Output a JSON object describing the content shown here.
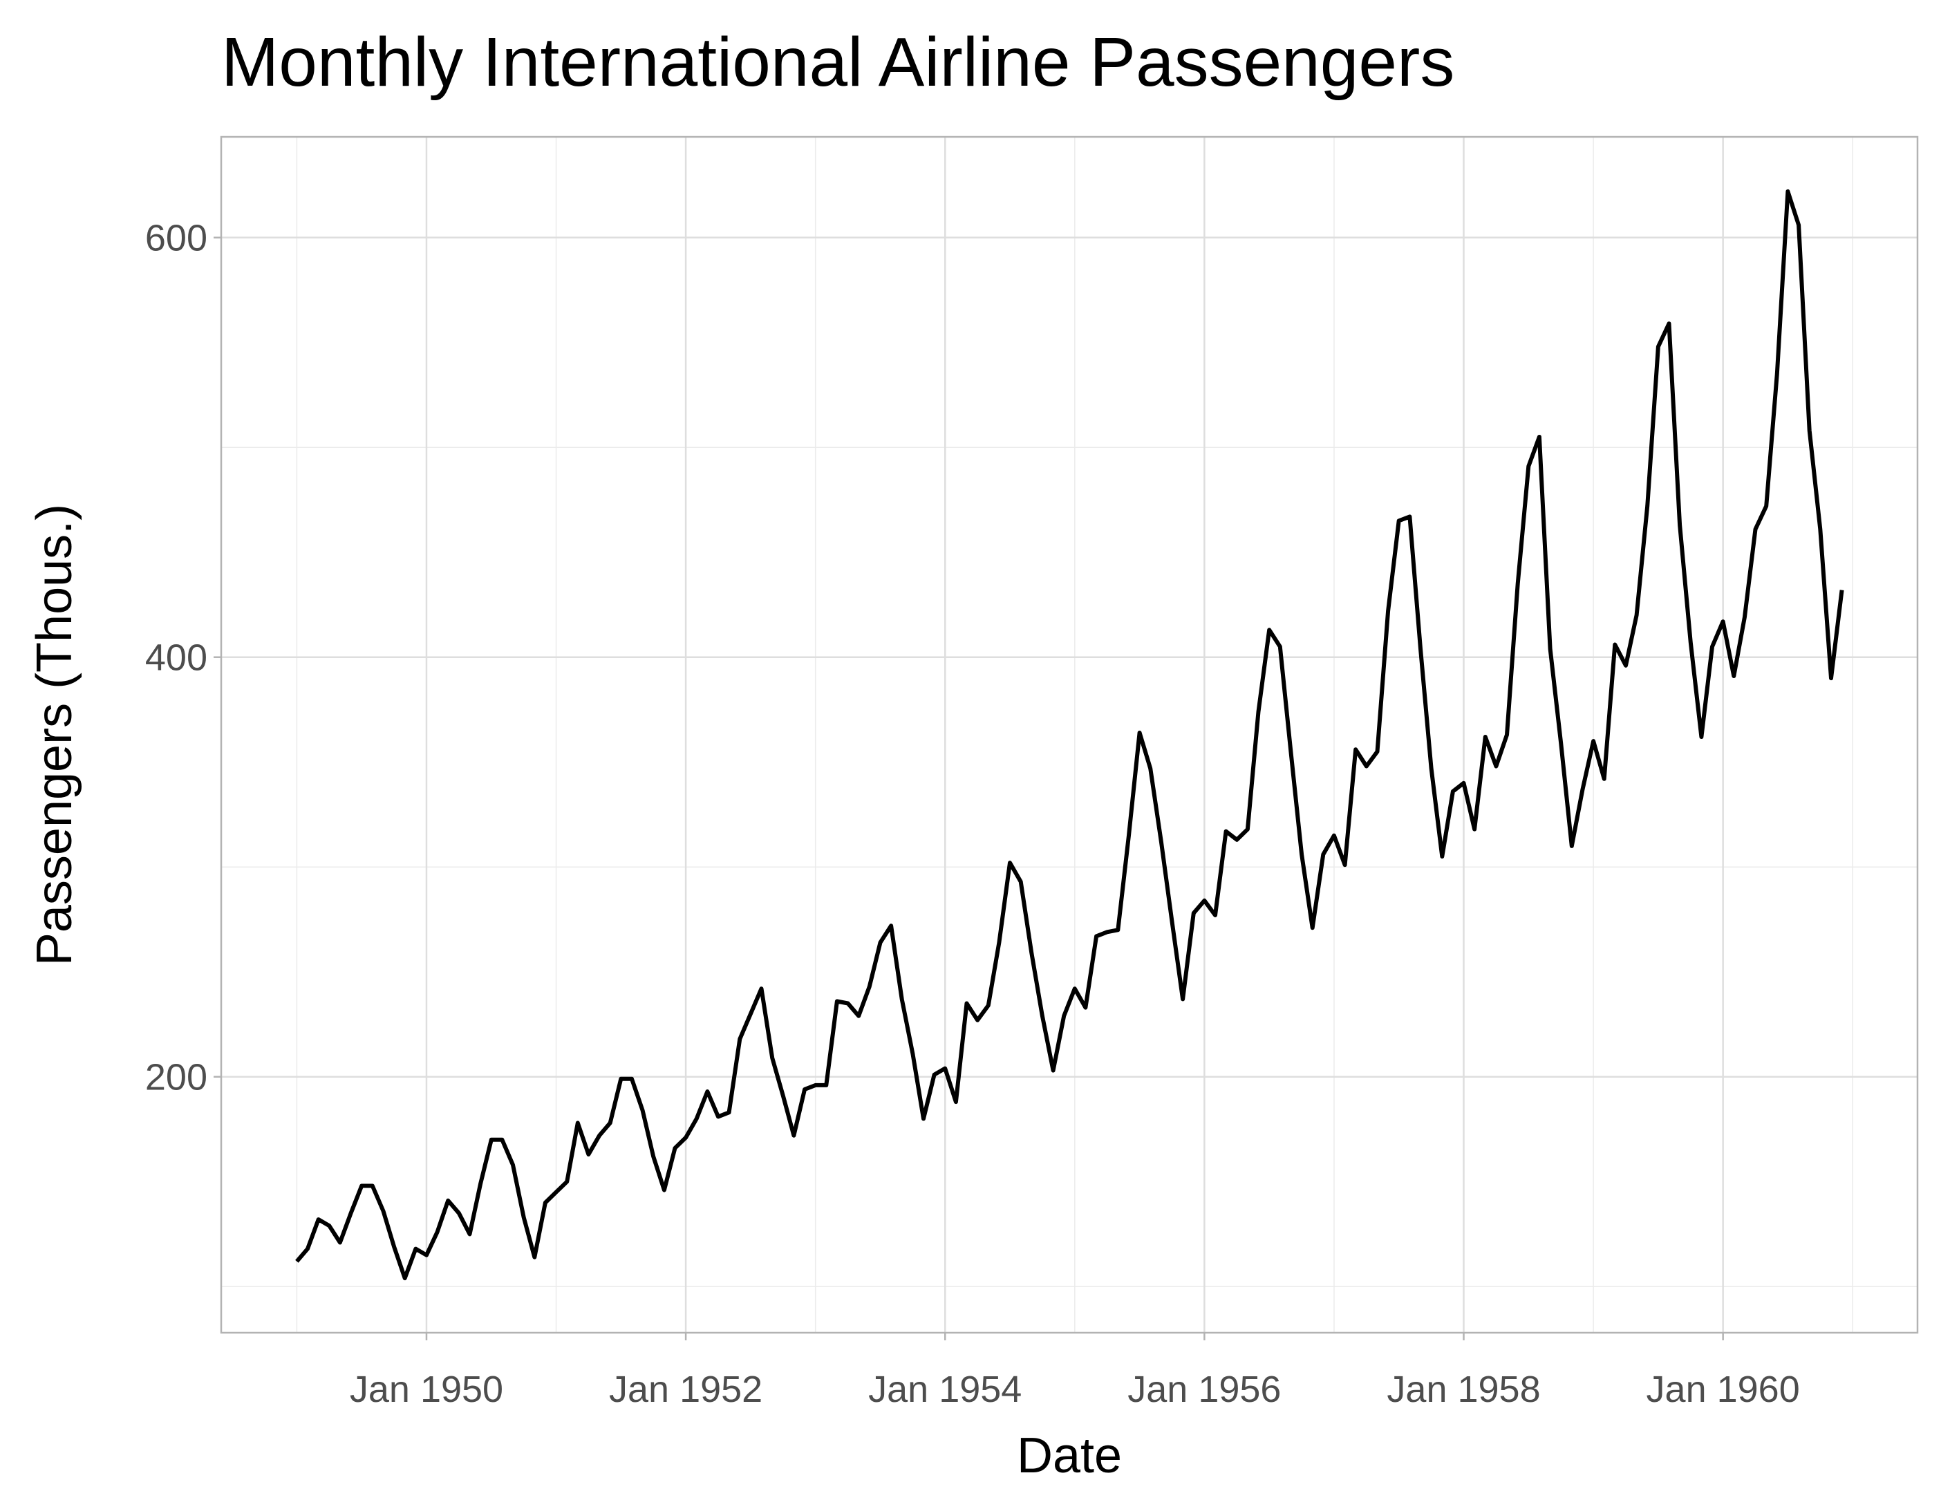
{
  "chart_data": {
    "type": "line",
    "title": "Monthly International Airline Passengers",
    "xlabel": "Date",
    "ylabel": "Passengers (Thous.)",
    "x_tick_labels": [
      "Jan 1950",
      "Jan 1952",
      "Jan 1954",
      "Jan 1956",
      "Jan 1958",
      "Jan 1960"
    ],
    "y_tick_labels": [
      "200",
      "400",
      "600"
    ],
    "y_ticks": [
      200,
      400,
      600
    ],
    "x_ticks": [
      "1950-01",
      "1952-01",
      "1954-01",
      "1956-01",
      "1958-01",
      "1960-01"
    ],
    "xlim": [
      "1948-06",
      "1961-07"
    ],
    "ylim": [
      78,
      648
    ],
    "grid": true,
    "line_color": "#000000",
    "start": "1949-01",
    "frequency": "monthly",
    "values": [
      112,
      118,
      132,
      129,
      121,
      135,
      148,
      148,
      136,
      119,
      104,
      118,
      115,
      126,
      141,
      135,
      125,
      149,
      170,
      170,
      158,
      133,
      114,
      140,
      145,
      150,
      178,
      163,
      172,
      178,
      199,
      199,
      184,
      162,
      146,
      166,
      171,
      180,
      193,
      181,
      183,
      218,
      230,
      242,
      209,
      191,
      172,
      194,
      196,
      196,
      236,
      235,
      229,
      243,
      264,
      272,
      237,
      211,
      180,
      201,
      204,
      188,
      235,
      227,
      234,
      264,
      302,
      293,
      259,
      229,
      203,
      229,
      242,
      233,
      267,
      269,
      270,
      315,
      364,
      347,
      312,
      274,
      237,
      278,
      284,
      277,
      317,
      313,
      318,
      374,
      413,
      405,
      355,
      306,
      271,
      306,
      315,
      301,
      356,
      348,
      355,
      422,
      465,
      467,
      404,
      347,
      305,
      336,
      340,
      318,
      362,
      348,
      363,
      435,
      491,
      505,
      404,
      359,
      310,
      337,
      360,
      342,
      406,
      396,
      420,
      472,
      548,
      559,
      463,
      407,
      362,
      405,
      417,
      391,
      419,
      461,
      472,
      535,
      622,
      606,
      508,
      461,
      390,
      432
    ]
  }
}
